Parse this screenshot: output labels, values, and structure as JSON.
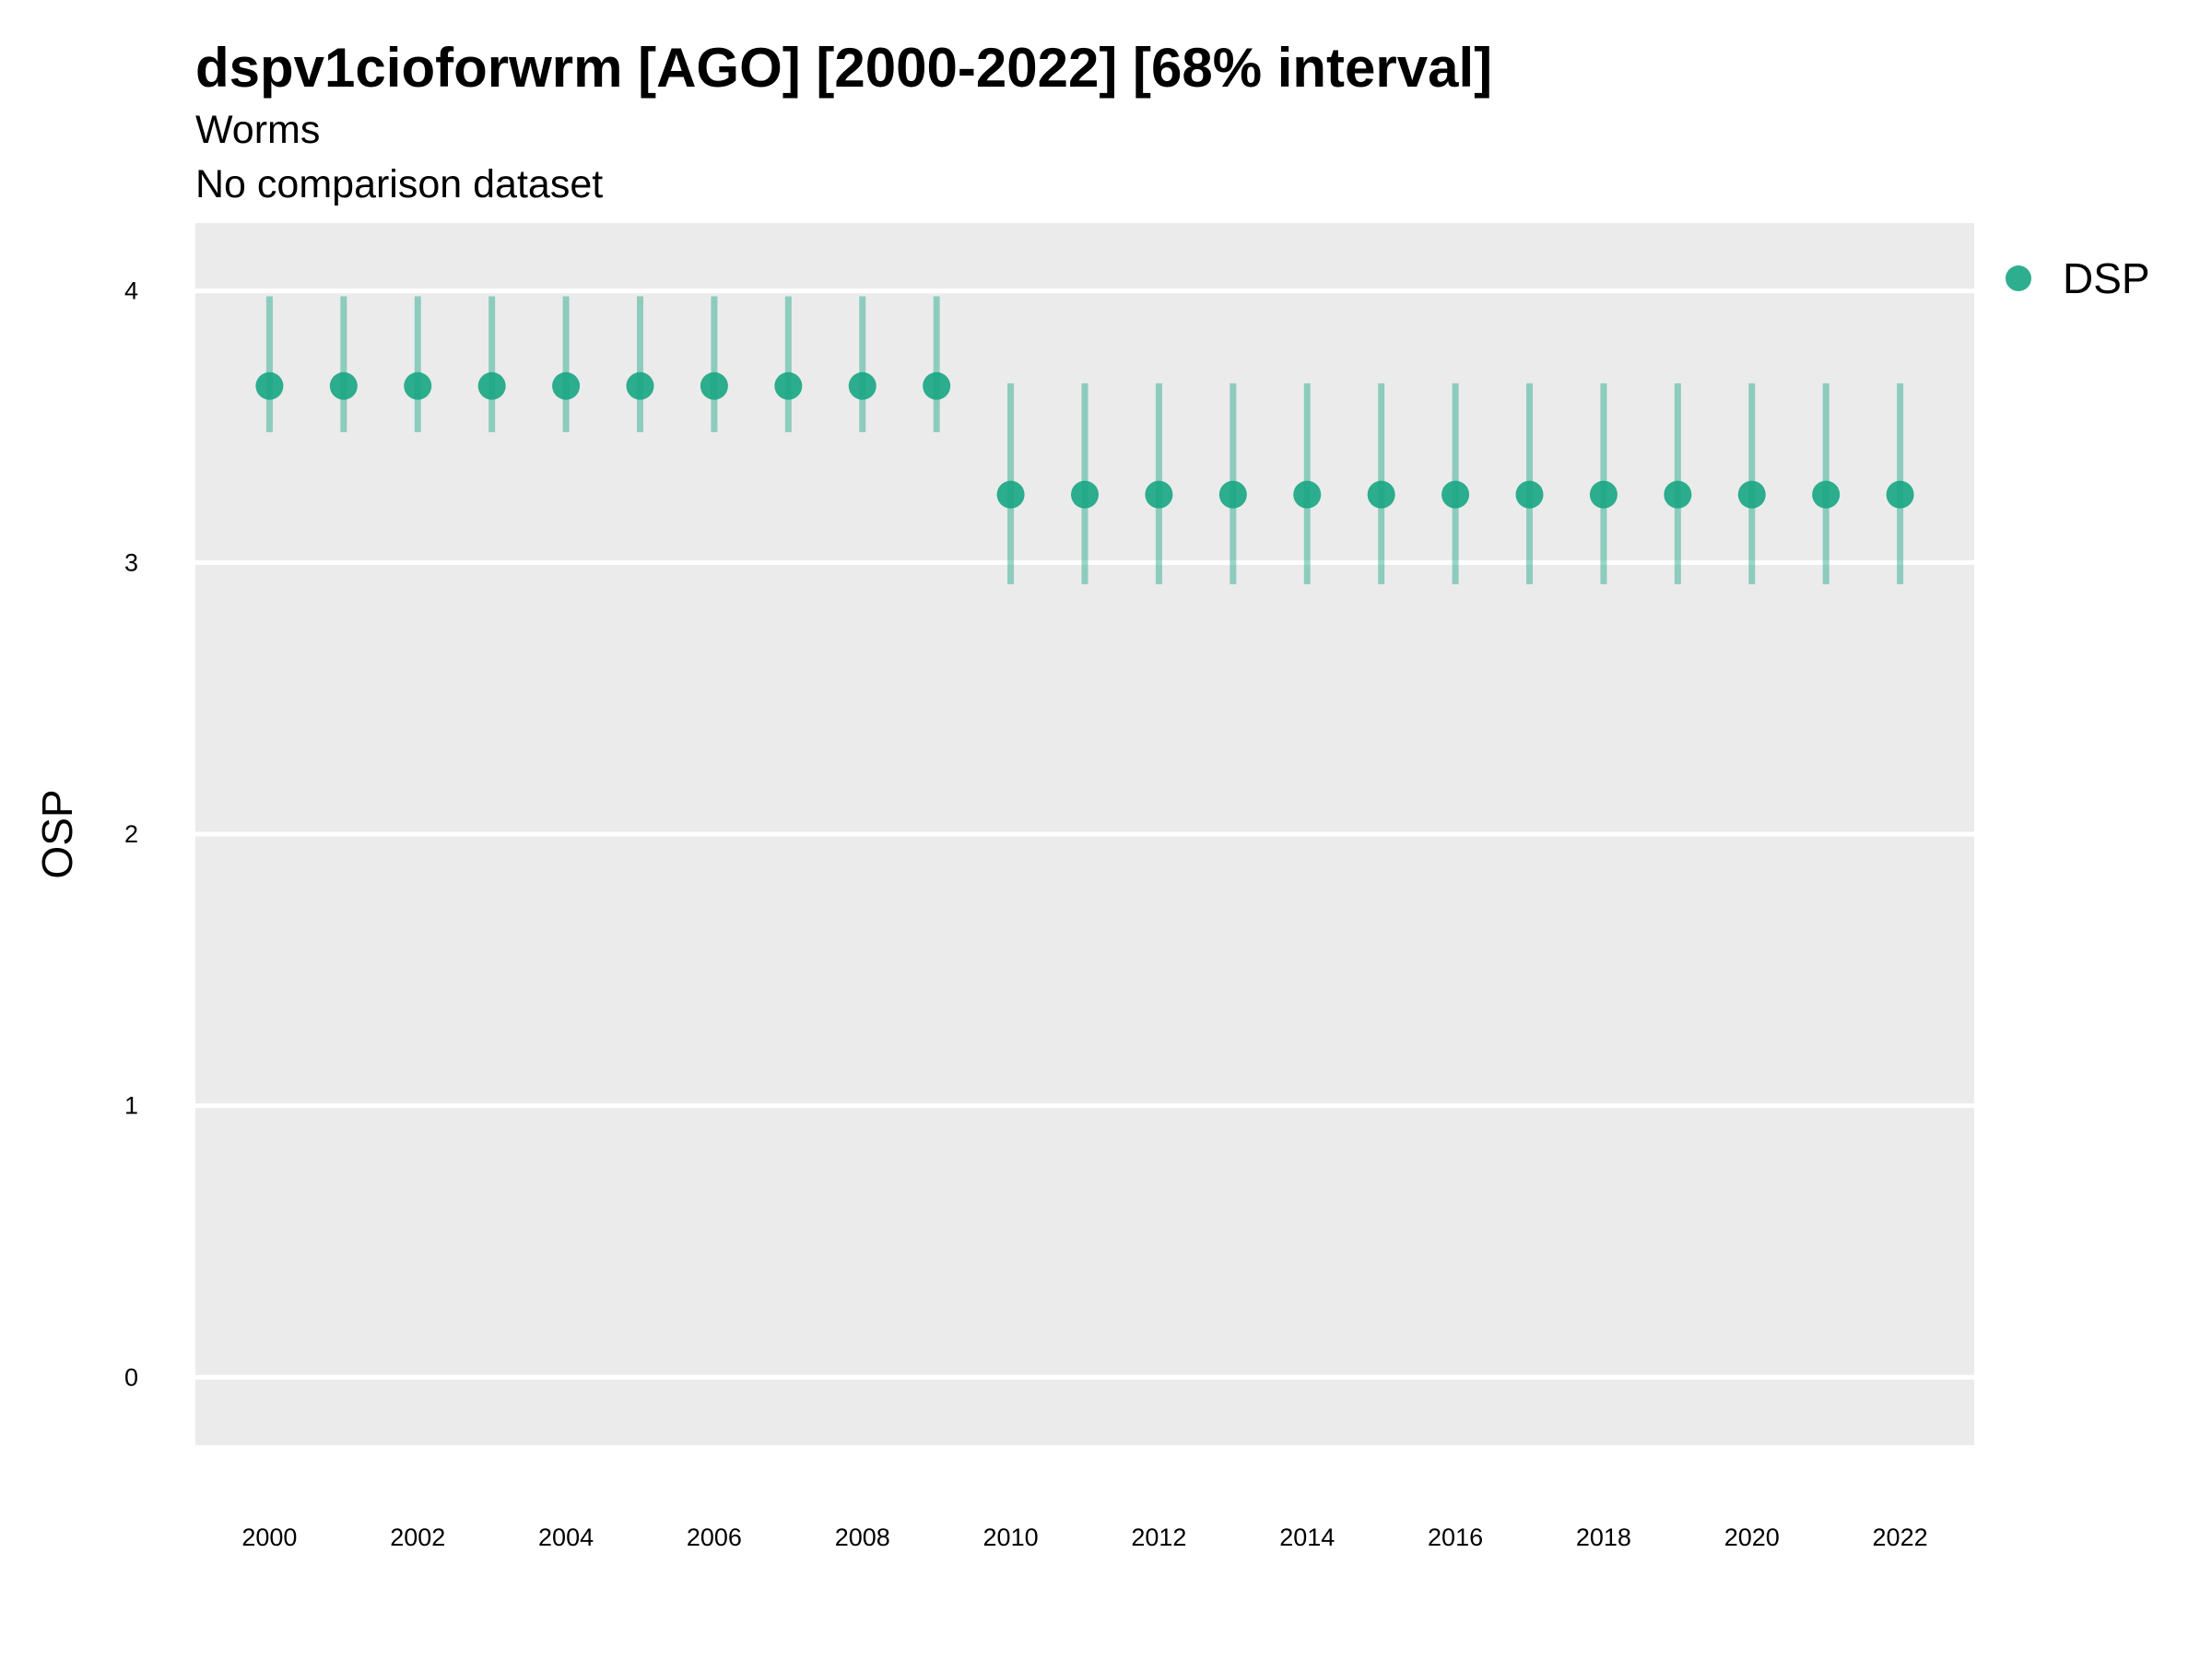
{
  "chart_data": {
    "type": "scatter",
    "title": "dspv1cioforwrm [AGO] [2000-2022] [68% interval]",
    "subtitle_lines": [
      "Worms",
      "No comparison dataset"
    ],
    "xlabel": "",
    "ylabel": "OSP",
    "xlim": [
      1999,
      2023
    ],
    "ylim": [
      -0.25,
      4.25
    ],
    "y_ticks": [
      0,
      1,
      2,
      3,
      4
    ],
    "x_ticks": [
      2000,
      2002,
      2004,
      2006,
      2008,
      2010,
      2012,
      2014,
      2016,
      2018,
      2020,
      2022
    ],
    "grid": true,
    "legend_position": "right",
    "panel_color": "#EBEBEB",
    "series": [
      {
        "name": "DSP",
        "color": "#1BA784",
        "points": [
          {
            "x": 2000,
            "y": 3.65,
            "lower": 3.48,
            "upper": 3.98
          },
          {
            "x": 2001,
            "y": 3.65,
            "lower": 3.48,
            "upper": 3.98
          },
          {
            "x": 2002,
            "y": 3.65,
            "lower": 3.48,
            "upper": 3.98
          },
          {
            "x": 2003,
            "y": 3.65,
            "lower": 3.48,
            "upper": 3.98
          },
          {
            "x": 2004,
            "y": 3.65,
            "lower": 3.48,
            "upper": 3.98
          },
          {
            "x": 2005,
            "y": 3.65,
            "lower": 3.48,
            "upper": 3.98
          },
          {
            "x": 2006,
            "y": 3.65,
            "lower": 3.48,
            "upper": 3.98
          },
          {
            "x": 2007,
            "y": 3.65,
            "lower": 3.48,
            "upper": 3.98
          },
          {
            "x": 2008,
            "y": 3.65,
            "lower": 3.48,
            "upper": 3.98
          },
          {
            "x": 2009,
            "y": 3.65,
            "lower": 3.48,
            "upper": 3.98
          },
          {
            "x": 2010,
            "y": 3.25,
            "lower": 2.92,
            "upper": 3.66
          },
          {
            "x": 2011,
            "y": 3.25,
            "lower": 2.92,
            "upper": 3.66
          },
          {
            "x": 2012,
            "y": 3.25,
            "lower": 2.92,
            "upper": 3.66
          },
          {
            "x": 2013,
            "y": 3.25,
            "lower": 2.92,
            "upper": 3.66
          },
          {
            "x": 2014,
            "y": 3.25,
            "lower": 2.92,
            "upper": 3.66
          },
          {
            "x": 2015,
            "y": 3.25,
            "lower": 2.92,
            "upper": 3.66
          },
          {
            "x": 2016,
            "y": 3.25,
            "lower": 2.92,
            "upper": 3.66
          },
          {
            "x": 2017,
            "y": 3.25,
            "lower": 2.92,
            "upper": 3.66
          },
          {
            "x": 2018,
            "y": 3.25,
            "lower": 2.92,
            "upper": 3.66
          },
          {
            "x": 2019,
            "y": 3.25,
            "lower": 2.92,
            "upper": 3.66
          },
          {
            "x": 2020,
            "y": 3.25,
            "lower": 2.92,
            "upper": 3.66
          },
          {
            "x": 2021,
            "y": 3.25,
            "lower": 2.92,
            "upper": 3.66
          },
          {
            "x": 2022,
            "y": 3.25,
            "lower": 2.92,
            "upper": 3.66
          }
        ]
      }
    ]
  }
}
